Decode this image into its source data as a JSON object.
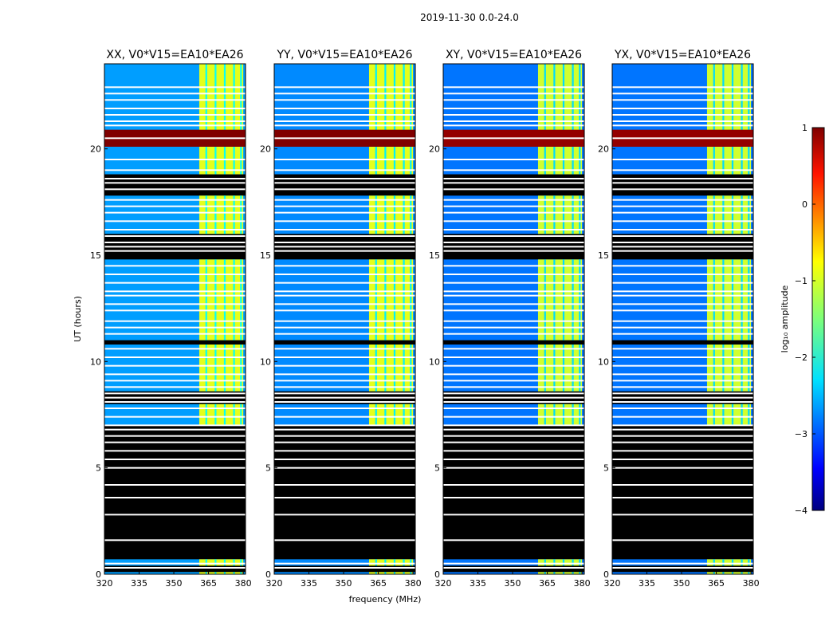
{
  "chart_data": {
    "type": "heatmap",
    "suptitle": "2019-11-30 0.0-24.0",
    "xlabel": "frequency (MHz)",
    "ylabel": "UT (hours)",
    "xlim": [
      320,
      381
    ],
    "ylim": [
      0,
      24
    ],
    "x_ticks": [
      "320",
      "335",
      "350",
      "365",
      "380"
    ],
    "y_ticks": [
      "0",
      "5",
      "10",
      "15",
      "20"
    ],
    "colorbar": {
      "label": "log₁₀ amplitude",
      "range": [
        -4,
        1
      ],
      "ticks": [
        "1",
        "0",
        "−1",
        "−2",
        "−3",
        "−4"
      ],
      "colormap": "jet"
    },
    "panels": [
      {
        "title": "XX, V0*V15=EA10*EA26",
        "baseline_log_amp": -2.6,
        "rfi_band_log_amp": -1.0,
        "event_log_amp": 1.0
      },
      {
        "title": "YY, V0*V15=EA10*EA26",
        "baseline_log_amp": -2.7,
        "rfi_band_log_amp": -1.0,
        "event_log_amp": 1.0
      },
      {
        "title": "XY, V0*V15=EA10*EA26",
        "baseline_log_amp": -2.8,
        "rfi_band_log_amp": -1.1,
        "event_log_amp": 0.9
      },
      {
        "title": "YX, V0*V15=EA10*EA26",
        "baseline_log_amp": -2.8,
        "rfi_band_log_amp": -1.1,
        "event_log_amp": 0.9
      }
    ],
    "rfi_band_mhz": [
      361,
      380
    ],
    "rfi_channels_mhz": [
      364,
      368,
      372,
      376,
      379
    ],
    "strong_event_ut": [
      20.1,
      20.9
    ],
    "data_present_ut": [
      [
        0.0,
        0.7
      ],
      [
        7.0,
        8.0
      ],
      [
        8.6,
        10.8
      ],
      [
        11.0,
        14.8
      ],
      [
        16.0,
        17.8
      ],
      [
        18.8,
        24.0
      ]
    ],
    "flagged_ut": [
      [
        0.1,
        0.4
      ],
      [
        0.8,
        6.3
      ],
      [
        10.9,
        11.0
      ],
      [
        15.0,
        15.8
      ],
      [
        18.0,
        18.8
      ]
    ],
    "blank_rows_ut": [
      0.3,
      0.5,
      1.6,
      2.8,
      3.6,
      4.2,
      5.0,
      5.4,
      5.8,
      6.2,
      6.5,
      6.8,
      7.0,
      7.4,
      7.8,
      8.1,
      8.3,
      8.5,
      8.8,
      9.1,
      9.4,
      9.8,
      10.2,
      10.6,
      11.3,
      11.6,
      11.9,
      12.4,
      12.7,
      13.1,
      13.3,
      13.7,
      14.1,
      14.5,
      15.2,
      15.4,
      15.6,
      15.9,
      16.2,
      16.6,
      17.0,
      17.3,
      17.6,
      18.1,
      18.4,
      18.6,
      19.0,
      19.5,
      20.5,
      21.1,
      21.3,
      21.6,
      21.9,
      22.3,
      22.6,
      22.9
    ]
  }
}
